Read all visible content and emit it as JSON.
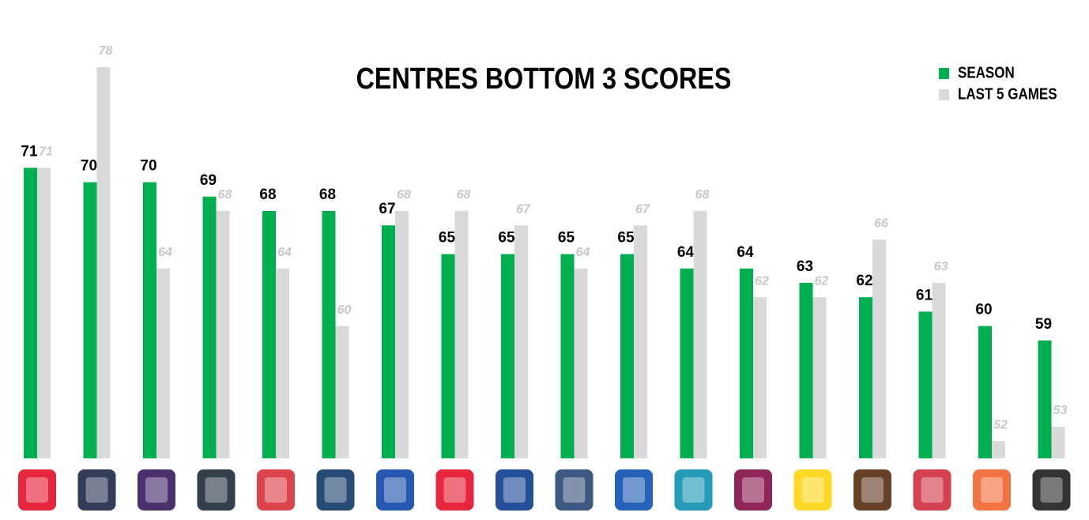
{
  "chart_data": {
    "type": "bar",
    "title": "CENTRES BOTTOM 3 SCORES",
    "categories": [
      null,
      null,
      null,
      null,
      null,
      null,
      null,
      null,
      null,
      null,
      null,
      null,
      null,
      null,
      null,
      null,
      null,
      null
    ],
    "series": [
      {
        "name": "SEASON",
        "color": "#00b050",
        "values": [
          71,
          70,
          70,
          69,
          68,
          68,
          67,
          65,
          65,
          65,
          65,
          64,
          64,
          63,
          62,
          61,
          60,
          59
        ]
      },
      {
        "name": "LAST 5 GAMES",
        "color": "#d9d9d9",
        "values": [
          71,
          78,
          64,
          68,
          64,
          60,
          68,
          68,
          67,
          64,
          67,
          68,
          62,
          62,
          66,
          63,
          52,
          53
        ]
      }
    ],
    "ylim": [
      50.8,
      80
    ],
    "legend": "top-right"
  }
}
